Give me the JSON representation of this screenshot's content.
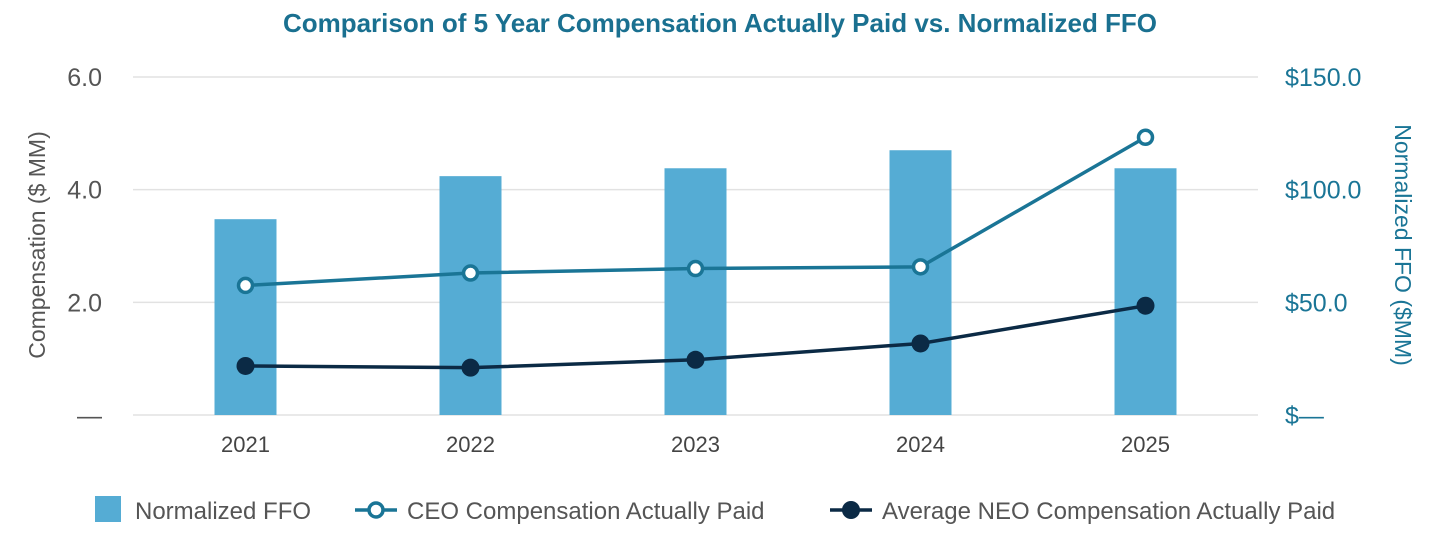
{
  "chart_data": {
    "type": "bar",
    "title": "Comparison of 5 Year Compensation Actually Paid vs. Normalized FFO",
    "categories": [
      "2021",
      "2022",
      "2023",
      "2024",
      "2025"
    ],
    "y_left": {
      "label": "Compensation ($ MM)",
      "range": [
        0,
        6.0
      ],
      "ticks": [
        0,
        2.0,
        4.0,
        6.0
      ],
      "tick_labels": [
        "—",
        "2.0",
        "4.0",
        "6.0"
      ]
    },
    "y_right": {
      "label": "Normalized FFO ($MM)",
      "range": [
        0,
        150.0
      ],
      "ticks": [
        0,
        50.0,
        100.0,
        150.0
      ],
      "tick_labels": [
        "$—",
        "$50.0",
        "$100.0",
        "$150.0"
      ]
    },
    "series": [
      {
        "name": "Normalized FFO",
        "kind": "bar",
        "axis": "right",
        "color": "#55acd4",
        "values": [
          86.9,
          106.0,
          109.5,
          117.5,
          109.5
        ]
      },
      {
        "name": "CEO Compensation Actually Paid",
        "kind": "line",
        "marker": "open-circle",
        "axis": "left",
        "color": "#1a7596",
        "values": [
          2.3,
          2.52,
          2.6,
          2.63,
          4.93
        ]
      },
      {
        "name": "Average NEO Compensation Actually Paid",
        "kind": "line",
        "marker": "filled-circle",
        "axis": "left",
        "color": "#0b2a45",
        "values": [
          0.87,
          0.84,
          0.98,
          1.27,
          1.94
        ]
      }
    ],
    "grid": true,
    "legend_position": "bottom"
  }
}
